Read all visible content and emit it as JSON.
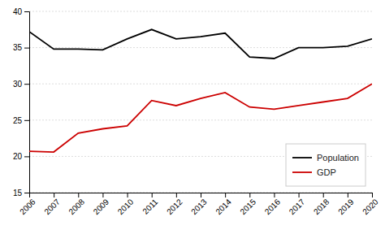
{
  "chart_data": {
    "type": "line",
    "x": [
      2006,
      2007,
      2008,
      2009,
      2010,
      2011,
      2012,
      2013,
      2014,
      2015,
      2016,
      2017,
      2018,
      2019,
      2020
    ],
    "series": [
      {
        "name": "Population",
        "color": "#000000",
        "values": [
          37.2,
          34.8,
          34.8,
          34.7,
          36.2,
          37.5,
          36.2,
          36.5,
          37.0,
          33.7,
          33.5,
          35.0,
          35.0,
          35.2,
          36.2
        ]
      },
      {
        "name": "GDP",
        "color": "#cc0000",
        "values": [
          20.7,
          20.6,
          23.2,
          23.8,
          24.2,
          27.7,
          27.0,
          28.0,
          28.8,
          26.8,
          26.5,
          27.0,
          27.5,
          28.0,
          30.0
        ]
      }
    ],
    "xlim": [
      2006,
      2020
    ],
    "xticks": [
      2006,
      2007,
      2008,
      2009,
      2010,
      2011,
      2012,
      2013,
      2014,
      2015,
      2016,
      2017,
      2018,
      2019,
      2020
    ],
    "ylim": [
      15,
      40
    ],
    "yticks": [
      15,
      20,
      25,
      30,
      35,
      40
    ],
    "grid": true,
    "legend": "lower right"
  }
}
